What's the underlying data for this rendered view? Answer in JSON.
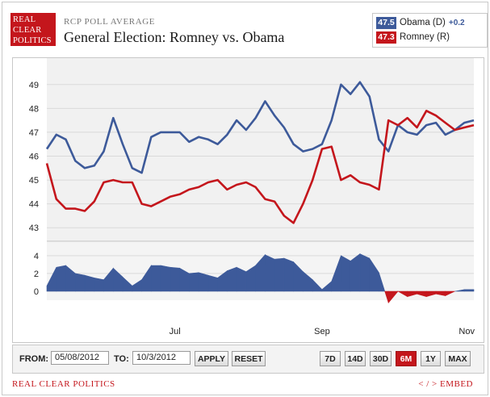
{
  "brand": {
    "logo_line1": "REAL",
    "logo_line2": "CLEAR",
    "logo_line3": "POLITICS"
  },
  "header": {
    "kicker": "RCP POLL AVERAGE",
    "title": "General Election: Romney vs. Obama"
  },
  "legend": {
    "obama": {
      "value": "47.5",
      "label": "Obama (D)",
      "change": "+0.2",
      "color": "#3d5a9a"
    },
    "romney": {
      "value": "47.3",
      "label": "Romney (R)",
      "color": "#c4161c"
    }
  },
  "controls": {
    "from_label": "FROM:",
    "from_value": "05/08/2012",
    "to_label": "TO:",
    "to_value": "10/3/2012",
    "apply_label": "APPLY",
    "reset_label": "RESET",
    "ranges": [
      "7D",
      "14D",
      "30D",
      "6M",
      "1Y",
      "MAX"
    ],
    "active_range": "6M"
  },
  "footer": {
    "left": "REAL CLEAR POLITICS",
    "right": "< / > EMBED"
  },
  "chart_data": {
    "type": "line",
    "x": [
      "05/08",
      "05/12",
      "05/16",
      "05/20",
      "05/24",
      "05/28",
      "06/01",
      "06/05",
      "06/09",
      "06/13",
      "06/17",
      "06/21",
      "06/25",
      "06/29",
      "07/03",
      "07/07",
      "07/11",
      "07/15",
      "07/19",
      "07/23",
      "07/27",
      "07/31",
      "08/04",
      "08/08",
      "08/12",
      "08/16",
      "08/20",
      "08/24",
      "08/28",
      "09/01",
      "09/05",
      "09/09",
      "09/13",
      "09/17",
      "09/21",
      "09/25",
      "09/29",
      "10/03",
      "10/07",
      "10/11",
      "10/15",
      "10/19",
      "10/23",
      "10/27",
      "10/31",
      "11/04"
    ],
    "x_ticks": [
      {
        "label": "Jul",
        "date": "07/01"
      },
      {
        "label": "Sep",
        "date": "09/01"
      },
      {
        "label": "Nov",
        "date": "11/01"
      }
    ],
    "ylim": [
      42.5,
      49.5
    ],
    "yticks": [
      43,
      44,
      45,
      46,
      47,
      48,
      49
    ],
    "series": [
      {
        "name": "Obama (D)",
        "color": "#3d5a9a",
        "values": [
          46.3,
          46.9,
          46.7,
          45.8,
          45.5,
          45.6,
          46.2,
          47.6,
          46.5,
          45.5,
          45.3,
          46.8,
          47.0,
          47.0,
          47.0,
          46.6,
          46.8,
          46.7,
          46.5,
          46.9,
          47.5,
          47.1,
          47.6,
          48.3,
          47.7,
          47.2,
          46.5,
          46.2,
          46.3,
          46.5,
          47.5,
          49.0,
          48.6,
          49.1,
          48.5,
          46.7,
          46.2,
          47.3,
          47.0,
          46.9,
          47.3,
          47.4,
          46.9,
          47.1,
          47.4,
          47.5
        ]
      },
      {
        "name": "Romney (R)",
        "color": "#c4161c",
        "values": [
          45.7,
          44.2,
          43.8,
          43.8,
          43.7,
          44.1,
          44.9,
          45.0,
          44.9,
          44.9,
          44.0,
          43.9,
          44.1,
          44.3,
          44.4,
          44.6,
          44.7,
          44.9,
          45.0,
          44.6,
          44.8,
          44.9,
          44.7,
          44.2,
          44.1,
          43.5,
          43.2,
          44.0,
          45.0,
          46.3,
          46.4,
          45.0,
          45.2,
          44.9,
          44.8,
          44.6,
          47.5,
          47.3,
          47.6,
          47.2,
          47.9,
          47.7,
          47.4,
          47.1,
          47.2,
          47.3
        ]
      }
    ],
    "spread": {
      "ylim": [
        -1,
        4.8
      ],
      "yticks": [
        0,
        2,
        4
      ],
      "positive_color": "#3d5a9a",
      "negative_color": "#c4161c"
    }
  }
}
